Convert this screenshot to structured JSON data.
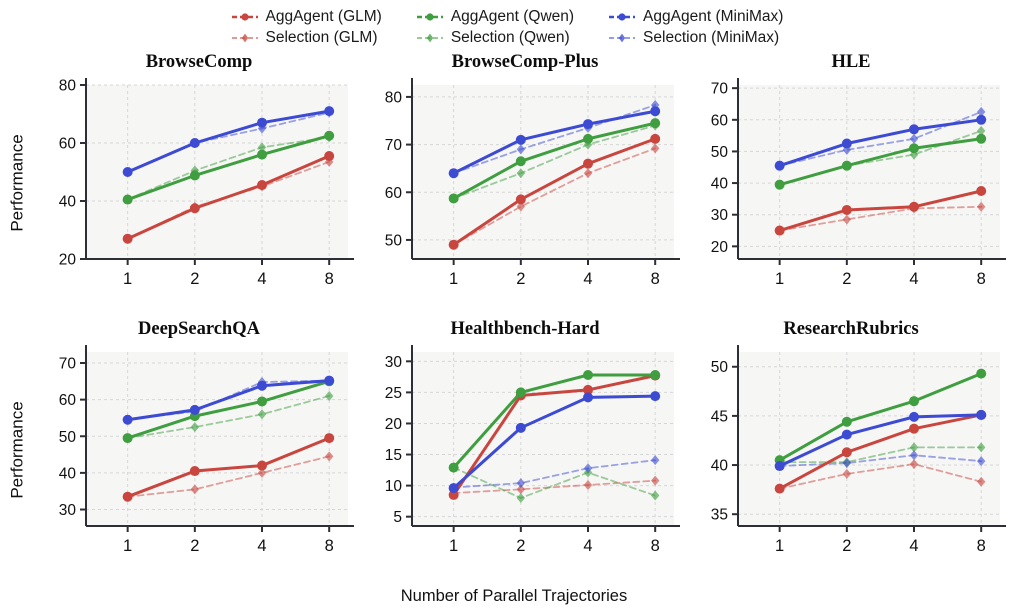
{
  "figure": {
    "xlabel": "Number of Parallel Trajectories",
    "ylabel": "Performance"
  },
  "legend": {
    "items": [
      {
        "label": "AggAgent (GLM)",
        "color": "#c9463f",
        "style": "solid",
        "marker": "circle"
      },
      {
        "label": "Selection (GLM)",
        "color": "#c9463f",
        "style": "dashed",
        "marker": "diamond"
      },
      {
        "label": "AggAgent (Qwen)",
        "color": "#3f9e3f",
        "style": "solid",
        "marker": "circle"
      },
      {
        "label": "Selection (Qwen)",
        "color": "#3f9e3f",
        "style": "dashed",
        "marker": "diamond"
      },
      {
        "label": "AggAgent (MiniMax)",
        "color": "#3c4bd2",
        "style": "solid",
        "marker": "circle"
      },
      {
        "label": "Selection (MiniMax)",
        "color": "#3c4bd2",
        "style": "dashed",
        "marker": "diamond"
      }
    ]
  },
  "chart_data": [
    {
      "type": "line",
      "title": "BrowseComp",
      "xlabel": "Number of Parallel Trajectories",
      "ylabel": "Performance",
      "x": [
        1,
        2,
        4,
        8
      ],
      "yticks": [
        20,
        40,
        60,
        80
      ],
      "ylim": [
        20,
        80
      ],
      "series": [
        {
          "name": "AggAgent (GLM)",
          "color": "#c9463f",
          "style": "solid",
          "values": [
            27.0,
            37.5,
            45.5,
            55.5
          ]
        },
        {
          "name": "Selection (GLM)",
          "color": "#c9463f",
          "style": "dashed",
          "values": [
            27.0,
            38.0,
            45.0,
            53.5
          ]
        },
        {
          "name": "AggAgent (Qwen)",
          "color": "#3f9e3f",
          "style": "solid",
          "values": [
            40.5,
            48.8,
            56.0,
            62.5
          ]
        },
        {
          "name": "Selection (Qwen)",
          "color": "#3f9e3f",
          "style": "dashed",
          "values": [
            40.5,
            50.5,
            58.5,
            62.0
          ]
        },
        {
          "name": "AggAgent (MiniMax)",
          "color": "#3c4bd2",
          "style": "solid",
          "values": [
            50.0,
            60.0,
            67.0,
            71.0
          ]
        },
        {
          "name": "Selection (MiniMax)",
          "color": "#3c4bd2",
          "style": "dashed",
          "values": [
            50.0,
            60.0,
            65.0,
            70.5
          ]
        }
      ]
    },
    {
      "type": "line",
      "title": "BrowseComp-Plus",
      "xlabel": "Number of Parallel Trajectories",
      "ylabel": "Performance",
      "x": [
        1,
        2,
        4,
        8
      ],
      "yticks": [
        50,
        60,
        70,
        80
      ],
      "ylim": [
        46,
        82.5
      ],
      "series": [
        {
          "name": "AggAgent (GLM)",
          "color": "#c9463f",
          "style": "solid",
          "values": [
            49.0,
            58.5,
            66.0,
            71.2
          ]
        },
        {
          "name": "Selection (GLM)",
          "color": "#c9463f",
          "style": "dashed",
          "values": [
            49.0,
            57.0,
            64.0,
            69.2
          ]
        },
        {
          "name": "AggAgent (Qwen)",
          "color": "#3f9e3f",
          "style": "solid",
          "values": [
            58.7,
            66.5,
            71.2,
            74.5
          ]
        },
        {
          "name": "Selection (Qwen)",
          "color": "#3f9e3f",
          "style": "dashed",
          "values": [
            58.7,
            64.0,
            70.0,
            74.0
          ]
        },
        {
          "name": "AggAgent (MiniMax)",
          "color": "#3c4bd2",
          "style": "solid",
          "values": [
            64.0,
            71.0,
            74.3,
            77.0
          ]
        },
        {
          "name": "Selection (MiniMax)",
          "color": "#3c4bd2",
          "style": "dashed",
          "values": [
            64.0,
            69.0,
            73.5,
            78.3
          ]
        }
      ]
    },
    {
      "type": "line",
      "title": "HLE",
      "xlabel": "Number of Parallel Trajectories",
      "ylabel": "Performance",
      "x": [
        1,
        2,
        4,
        8
      ],
      "yticks": [
        20,
        30,
        40,
        50,
        60,
        70
      ],
      "ylim": [
        16,
        71
      ],
      "series": [
        {
          "name": "AggAgent (GLM)",
          "color": "#c9463f",
          "style": "solid",
          "values": [
            25.0,
            31.5,
            32.5,
            37.5
          ]
        },
        {
          "name": "Selection (GLM)",
          "color": "#c9463f",
          "style": "dashed",
          "values": [
            25.0,
            28.5,
            32.0,
            32.5
          ]
        },
        {
          "name": "AggAgent (Qwen)",
          "color": "#3f9e3f",
          "style": "solid",
          "values": [
            39.5,
            45.5,
            51.0,
            54.0
          ]
        },
        {
          "name": "Selection (Qwen)",
          "color": "#3f9e3f",
          "style": "dashed",
          "values": [
            39.5,
            45.5,
            49.0,
            56.5
          ]
        },
        {
          "name": "AggAgent (MiniMax)",
          "color": "#3c4bd2",
          "style": "solid",
          "values": [
            45.5,
            52.5,
            57.0,
            60.0
          ]
        },
        {
          "name": "Selection (MiniMax)",
          "color": "#3c4bd2",
          "style": "dashed",
          "values": [
            45.5,
            50.5,
            54.0,
            62.5
          ]
        }
      ]
    },
    {
      "type": "line",
      "title": "DeepSearchQA",
      "xlabel": "Number of Parallel Trajectories",
      "ylabel": "Performance",
      "x": [
        1,
        2,
        4,
        8
      ],
      "yticks": [
        30,
        40,
        50,
        60,
        70
      ],
      "ylim": [
        25.5,
        73
      ],
      "series": [
        {
          "name": "AggAgent (GLM)",
          "color": "#c9463f",
          "style": "solid",
          "values": [
            33.5,
            40.5,
            42.0,
            49.5
          ]
        },
        {
          "name": "Selection (GLM)",
          "color": "#c9463f",
          "style": "dashed",
          "values": [
            33.5,
            35.5,
            40.0,
            44.5
          ]
        },
        {
          "name": "AggAgent (Qwen)",
          "color": "#3f9e3f",
          "style": "solid",
          "values": [
            49.5,
            55.5,
            59.5,
            65.0
          ]
        },
        {
          "name": "Selection (Qwen)",
          "color": "#3f9e3f",
          "style": "dashed",
          "values": [
            49.5,
            52.5,
            56.0,
            61.0
          ]
        },
        {
          "name": "AggAgent (MiniMax)",
          "color": "#3c4bd2",
          "style": "solid",
          "values": [
            54.5,
            57.2,
            63.8,
            65.2
          ]
        },
        {
          "name": "Selection (MiniMax)",
          "color": "#3c4bd2",
          "style": "dashed",
          "values": [
            54.5,
            56.8,
            64.8,
            65.2
          ]
        }
      ]
    },
    {
      "type": "line",
      "title": "Healthbench-Hard",
      "xlabel": "Number of Parallel Trajectories",
      "ylabel": "Performance",
      "x": [
        1,
        2,
        4,
        8
      ],
      "yticks": [
        5,
        10,
        15,
        20,
        25,
        30
      ],
      "ylim": [
        3.5,
        31.5
      ],
      "series": [
        {
          "name": "AggAgent (GLM)",
          "color": "#c9463f",
          "style": "solid",
          "values": [
            8.5,
            24.5,
            25.4,
            27.7
          ]
        },
        {
          "name": "Selection (GLM)",
          "color": "#c9463f",
          "style": "dashed",
          "values": [
            8.8,
            9.4,
            10.1,
            10.8
          ]
        },
        {
          "name": "AggAgent (Qwen)",
          "color": "#3f9e3f",
          "style": "solid",
          "values": [
            12.9,
            25.0,
            27.8,
            27.8
          ]
        },
        {
          "name": "Selection (Qwen)",
          "color": "#3f9e3f",
          "style": "dashed",
          "values": [
            12.9,
            8.0,
            12.1,
            8.4
          ]
        },
        {
          "name": "AggAgent (MiniMax)",
          "color": "#3c4bd2",
          "style": "solid",
          "values": [
            9.6,
            19.3,
            24.2,
            24.4
          ]
        },
        {
          "name": "Selection (MiniMax)",
          "color": "#3c4bd2",
          "style": "dashed",
          "values": [
            9.7,
            10.4,
            12.8,
            14.1
          ]
        }
      ]
    },
    {
      "type": "line",
      "title": "ResearchRubrics",
      "xlabel": "Number of Parallel Trajectories",
      "ylabel": "Performance",
      "x": [
        1,
        2,
        4,
        8
      ],
      "yticks": [
        35,
        40,
        45,
        50
      ],
      "ylim": [
        33.8,
        51.5
      ],
      "series": [
        {
          "name": "AggAgent (GLM)",
          "color": "#c9463f",
          "style": "solid",
          "values": [
            37.6,
            41.3,
            43.7,
            45.1
          ]
        },
        {
          "name": "Selection (GLM)",
          "color": "#c9463f",
          "style": "dashed",
          "values": [
            37.6,
            39.1,
            40.1,
            38.3
          ]
        },
        {
          "name": "AggAgent (Qwen)",
          "color": "#3f9e3f",
          "style": "solid",
          "values": [
            40.5,
            44.4,
            46.5,
            49.3
          ]
        },
        {
          "name": "Selection (Qwen)",
          "color": "#3f9e3f",
          "style": "dashed",
          "values": [
            40.3,
            40.3,
            41.8,
            41.8
          ]
        },
        {
          "name": "AggAgent (MiniMax)",
          "color": "#3c4bd2",
          "style": "solid",
          "values": [
            39.9,
            43.1,
            44.9,
            45.1
          ]
        },
        {
          "name": "Selection (MiniMax)",
          "color": "#3c4bd2",
          "style": "dashed",
          "values": [
            39.9,
            40.2,
            41.0,
            40.4
          ]
        }
      ]
    }
  ]
}
